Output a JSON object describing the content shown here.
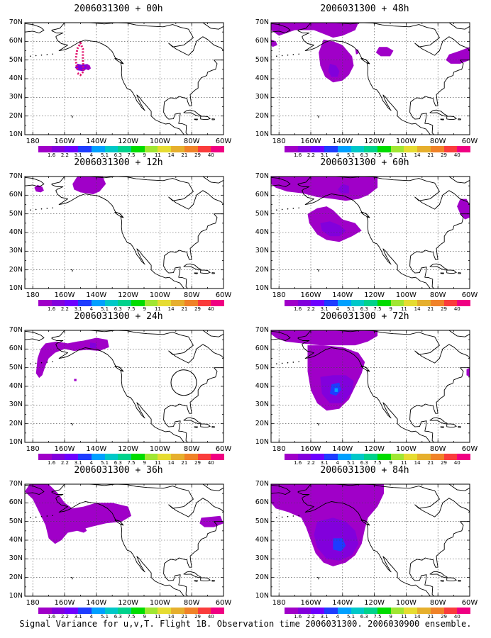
{
  "panels": [
    {
      "title": "2006031300 + 00h",
      "lead": "00h"
    },
    {
      "title": "2006031300 + 48h",
      "lead": "48h"
    },
    {
      "title": "2006031300 + 12h",
      "lead": "12h"
    },
    {
      "title": "2006031300 + 60h",
      "lead": "60h"
    },
    {
      "title": "2006031300 + 24h",
      "lead": "24h"
    },
    {
      "title": "2006031300 + 72h",
      "lead": "72h"
    },
    {
      "title": "2006031300 + 36h",
      "lead": "36h"
    },
    {
      "title": "2006031300 + 84h",
      "lead": "84h"
    }
  ],
  "axes": {
    "lat_labels": [
      "70N",
      "60N",
      "50N",
      "40N",
      "30N",
      "20N",
      "10N"
    ],
    "lon_labels": [
      "180",
      "160W",
      "140W",
      "120W",
      "100W",
      "80W",
      "60W"
    ]
  },
  "colorbar": {
    "labels": [
      "1.6",
      "2.2",
      "3.1",
      "4",
      "5.1",
      "6.3",
      "7.5",
      "9",
      "11",
      "14",
      "21",
      "29",
      "40"
    ],
    "colors": [
      "#a000c8",
      "#8200dc",
      "#6e00ff",
      "#1e3cff",
      "#00a0ff",
      "#00c8c8",
      "#00d28c",
      "#00dc00",
      "#a0e632",
      "#e6dc32",
      "#e6af2d",
      "#f08228",
      "#fa3c3c",
      "#f00082"
    ]
  },
  "caption": "Signal Variance for u,v,T. Flight 1B. Observation time 2006031300. 2006030900 ensemble."
}
